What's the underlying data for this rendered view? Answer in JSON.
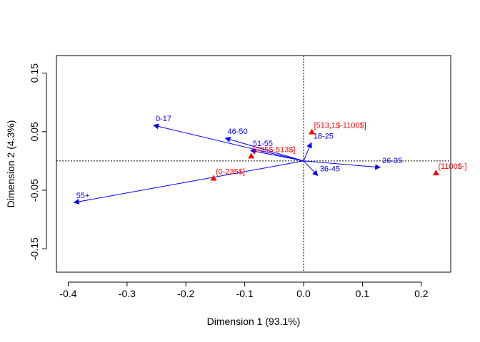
{
  "chart_data": {
    "type": "scatter",
    "title": "",
    "xlabel": "Dimension 1 (93.1%)",
    "ylabel": "Dimension 2 (4.3%)",
    "xlim": [
      -0.42,
      0.25
    ],
    "ylim": [
      -0.19,
      0.18
    ],
    "xticks": [
      -0.4,
      -0.3,
      -0.2,
      -0.1,
      0.0,
      0.1,
      0.2
    ],
    "xtick_labels": [
      "-0.4",
      "-0.3",
      "-0.2",
      "-0.1",
      "0.0",
      "0.1",
      "0.2"
    ],
    "yticks": [
      -0.15,
      -0.05,
      0.05,
      0.15
    ],
    "ytick_labels": [
      "-0.15",
      "-0.05",
      "0.05",
      "0.15"
    ],
    "reference_lines": {
      "x": 0,
      "y": 0
    },
    "column_vectors": {
      "color": "#0000ff",
      "points": [
        {
          "label": "0-17",
          "x": -0.255,
          "y": 0.061
        },
        {
          "label": "46-50",
          "x": -0.133,
          "y": 0.039
        },
        {
          "label": "51-55",
          "x": -0.09,
          "y": 0.018
        },
        {
          "label": "18-25",
          "x": 0.013,
          "y": 0.031
        },
        {
          "label": "26-35",
          "x": 0.13,
          "y": -0.011
        },
        {
          "label": "36-45",
          "x": 0.024,
          "y": -0.025
        },
        {
          "label": "55+",
          "x": -0.39,
          "y": -0.071
        }
      ]
    },
    "row_points": {
      "color": "#ff0000",
      "points": [
        {
          "label": "[513,1$-1100$]",
          "x": 0.014,
          "y": 0.049
        },
        {
          "label": "[235$-513$]",
          "x": -0.089,
          "y": 0.008
        },
        {
          "label": "(0-235$]",
          "x": -0.153,
          "y": -0.03
        },
        {
          "label": "(1100$-]",
          "x": 0.225,
          "y": -0.021
        }
      ]
    }
  }
}
